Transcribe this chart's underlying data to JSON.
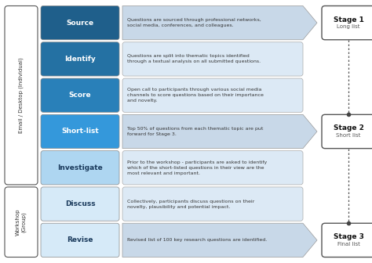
{
  "rows": [
    {
      "label": "Source",
      "label_bg": "#1f5f8b",
      "text": "Questions are sourced through professional networks,\nsocial media, conferences, and colleagues.",
      "has_arrow": true,
      "group": "email"
    },
    {
      "label": "Identify",
      "label_bg": "#2471a3",
      "text": "Questions are split into thematic topics identified\nthrough a textual analysis on all submitted questions.",
      "has_arrow": false,
      "group": "email"
    },
    {
      "label": "Score",
      "label_bg": "#2980b9",
      "text": "Open call to participants through various social media\nchannels to score questions based on their importance\nand novelty.",
      "has_arrow": false,
      "group": "email"
    },
    {
      "label": "Short-list",
      "label_bg": "#3498db",
      "text": "Top 50% of questions from each thematic topic are put\nforward for Stage 3.",
      "has_arrow": true,
      "group": "email"
    },
    {
      "label": "Investigate",
      "label_bg": "#aed6f1",
      "text": "Prior to the workshop - participants are asked to identify\nwhich of the short-listed questions in their view are the\nmost relevant and important.",
      "has_arrow": false,
      "group": "email"
    },
    {
      "label": "Discuss",
      "label_bg": "#d6eaf8",
      "text": "Collectively, participants discuss questions on their\nnovelty, plausibility and potential impact.",
      "has_arrow": false,
      "group": "workshop"
    },
    {
      "label": "Revise",
      "label_bg": "#d6eaf8",
      "text": "Revised list of 100 key research questions are identified.",
      "has_arrow": true,
      "group": "workshop"
    }
  ],
  "stages": [
    {
      "label": "Stage 1",
      "sublabel": "Long list",
      "row": 0
    },
    {
      "label": "Stage 2",
      "sublabel": "Short list",
      "row": 3
    },
    {
      "label": "Stage 3",
      "sublabel": "Final list",
      "row": 6
    }
  ],
  "text_bg": "#dce9f5",
  "arrow_bg": "#c8d8e8",
  "bg_color": "#ffffff",
  "group_email_text": "Email / Desktop (Individual)",
  "group_workshop_text": "Workshop\n(Group)"
}
